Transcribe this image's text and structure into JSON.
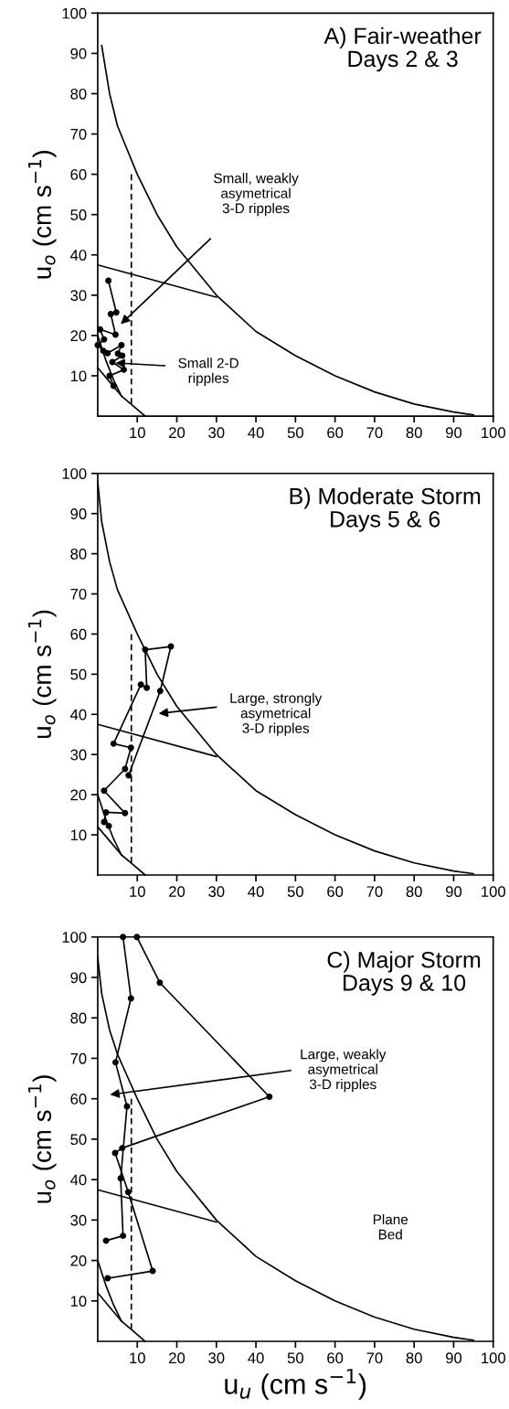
{
  "chart_data": [
    {
      "type": "line",
      "title": "A) Fair-weather\nDays 2 & 3",
      "ylabel": "u$_{o}$ (cm s$^{−1}$)",
      "xlim": [
        0,
        100
      ],
      "ylim": [
        0,
        100
      ],
      "xticks": [
        10,
        20,
        30,
        40,
        50,
        60,
        70,
        80,
        90,
        100
      ],
      "yticks": [
        10,
        20,
        30,
        40,
        50,
        60,
        70,
        80,
        90,
        100
      ],
      "grid": false,
      "series": [
        {
          "color": "#000000",
          "x": [
            1,
            3,
            5,
            10,
            15,
            20,
            30,
            40,
            50,
            60,
            70,
            80,
            90,
            95
          ],
          "values": [
            92,
            80,
            72,
            60,
            50,
            42,
            30,
            21,
            15,
            10,
            6,
            3,
            1,
            0.3
          ]
        },
        {
          "color": "#000000",
          "x": [
            0,
            30
          ],
          "values": [
            37.5,
            29.5
          ]
        },
        {
          "color": "#000000",
          "x": [
            0,
            2,
            4,
            6
          ],
          "values": [
            20,
            14,
            9,
            5
          ]
        },
        {
          "color": "#000000",
          "x": [
            0,
            3,
            6,
            9,
            12
          ],
          "values": [
            12,
            8.5,
            5,
            2.5,
            0
          ]
        },
        {
          "color": "#000000",
          "line_style": "dashed",
          "x": [
            8.5,
            8.5
          ],
          "values": [
            3,
            60
          ]
        },
        {
          "color": "#000000",
          "marker": "circle",
          "x": [
            2.7,
            4.7,
            3.3,
            4.5,
            0.6,
            1.6,
            0,
            1.4,
            2.5,
            6,
            5.1,
            6.2,
            3.7,
            6.6,
            3,
            4
          ],
          "values": [
            33.6,
            25.7,
            25.3,
            20.2,
            21.5,
            19,
            17.6,
            16.2,
            15.6,
            17.6,
            15.5,
            15,
            13.4,
            11.5,
            10,
            7.5
          ]
        }
      ],
      "annotations": [
        "Small, weakly\nasymetrical\n3-D ripples",
        "Small 2-D\nripples"
      ]
    },
    {
      "type": "line",
      "title": "B) Moderate Storm\nDays 5 & 6",
      "ylabel": "u$_{o}$ (cm s$^{−1}$)",
      "xlim": [
        0,
        100
      ],
      "ylim": [
        0,
        100
      ],
      "xticks": [
        10,
        20,
        30,
        40,
        50,
        60,
        70,
        80,
        90,
        100
      ],
      "yticks": [
        10,
        20,
        30,
        40,
        50,
        60,
        70,
        80,
        90,
        100
      ],
      "grid": false,
      "series": [
        {
          "color": "#000000",
          "x": [
            0,
            1,
            3,
            5,
            10,
            15,
            20,
            30,
            40,
            50,
            60,
            70,
            80,
            90,
            95
          ],
          "values": [
            98,
            88,
            78,
            71,
            60,
            50,
            42,
            30,
            21,
            15,
            10,
            6,
            3,
            1,
            0.3
          ]
        },
        {
          "color": "#000000",
          "x": [
            0,
            30
          ],
          "values": [
            37.5,
            29.5
          ]
        },
        {
          "color": "#000000",
          "x": [
            0,
            2,
            4,
            6
          ],
          "values": [
            20,
            14,
            9,
            5
          ]
        },
        {
          "color": "#000000",
          "x": [
            0,
            3,
            6,
            9,
            12
          ],
          "values": [
            12,
            8.5,
            5,
            2.5,
            0
          ]
        },
        {
          "color": "#000000",
          "line_style": "dashed",
          "x": [
            8.5,
            8.5
          ],
          "values": [
            3,
            60
          ]
        },
        {
          "color": "#000000",
          "marker": "circle",
          "x": [
            7.8,
            15.8,
            18.5,
            12,
            12.4,
            10.9,
            4,
            8.4,
            6.9,
            1.6,
            6.9,
            2.1,
            1.6,
            2.8
          ],
          "values": [
            24.8,
            45.8,
            56.9,
            56.1,
            46.6,
            47.4,
            32.7,
            31.7,
            26.4,
            21,
            15.4,
            15.6,
            13.2,
            12.2
          ]
        }
      ],
      "annotations": [
        "Large, strongly\nasymetrical\n3-D ripples"
      ]
    },
    {
      "type": "line",
      "title": "C) Major Storm\nDays 9 & 10",
      "ylabel": "u$_{o}$ (cm s$^{−1}$)",
      "xlabel": "u$_{u}$ (cm s$^{−1}$)",
      "xlim": [
        0,
        100
      ],
      "ylim": [
        0,
        100
      ],
      "xticks": [
        10,
        20,
        30,
        40,
        50,
        60,
        70,
        80,
        90,
        100
      ],
      "yticks": [
        10,
        20,
        30,
        40,
        50,
        60,
        70,
        80,
        90,
        100
      ],
      "grid": false,
      "series": [
        {
          "color": "#000000",
          "x": [
            0,
            1,
            3,
            5,
            10,
            15,
            20,
            30,
            40,
            50,
            60,
            70,
            80,
            90,
            95
          ],
          "values": [
            95,
            86,
            77,
            71,
            60,
            50,
            42,
            30,
            21,
            15,
            10,
            6,
            3,
            1,
            0.3
          ]
        },
        {
          "color": "#000000",
          "x": [
            0,
            30
          ],
          "values": [
            37.5,
            29.5
          ]
        },
        {
          "color": "#000000",
          "x": [
            0,
            2,
            4,
            6
          ],
          "values": [
            20,
            14,
            9,
            5
          ]
        },
        {
          "color": "#000000",
          "x": [
            0,
            3,
            6,
            9,
            12
          ],
          "values": [
            12,
            8.5,
            5,
            2.5,
            0
          ]
        },
        {
          "color": "#000000",
          "line_style": "dashed",
          "x": [
            8.5,
            8.5
          ],
          "values": [
            3,
            60
          ]
        },
        {
          "color": "#000000",
          "marker": "circle",
          "x": [
            6.4,
            8.4,
            4.5,
            7.4,
            5.8,
            6.4,
            2.1
          ],
          "values": [
            100,
            84.8,
            69,
            58.1,
            40.3,
            26.1,
            24.9
          ]
        },
        {
          "color": "#000000",
          "marker": "circle",
          "x": [
            2.5,
            13.9,
            7.7,
            4.4,
            6.2,
            43.4,
            15.7,
            9.9
          ],
          "values": [
            15.6,
            17.4,
            36.9,
            46.6,
            47.8,
            60.5,
            88.7,
            100
          ]
        }
      ],
      "annotations": [
        "Large, weakly\nasymetrical\n3-D ripples",
        "Plane\nBed"
      ]
    }
  ]
}
